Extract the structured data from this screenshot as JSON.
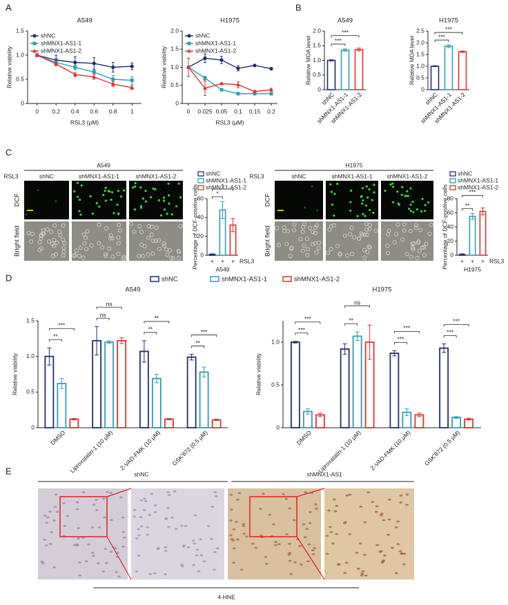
{
  "panels": [
    "A",
    "B",
    "C",
    "D",
    "E"
  ],
  "panel_c": {
    "blocks": [
      {
        "title": "A549",
        "treatment": "RSL3",
        "rows": [
          "DCF",
          "Bright field"
        ],
        "columns": [
          "shNC",
          "shMNX1-AS1-1",
          "shMNX1-AS1-2"
        ]
      },
      {
        "title": "H1975",
        "treatment": "RSL3",
        "rows": [
          "DCF",
          "Bright field"
        ],
        "columns": [
          "shNC",
          "shMNX1-AS1-1",
          "shMNX1-AS1-2"
        ]
      }
    ]
  },
  "panel_e": {
    "groups": [
      "shNC",
      "shMNX1-AS1"
    ],
    "stain": "4-HNE"
  },
  "chart_data": [
    {
      "type": "line",
      "title": "A549",
      "xlabel": "RSL3 (μM)",
      "ylabel": "Relative viability",
      "x": [
        0,
        0.2,
        0.4,
        0.6,
        0.8,
        1
      ],
      "xlim": [
        -0.1,
        1.1
      ],
      "xticks": [
        0,
        0.2,
        0.4,
        0.6,
        0.8,
        1
      ],
      "ylim": [
        0,
        1.5
      ],
      "yticks": [
        0,
        0.5,
        {
          "value": 1,
          "label": "1.0"
        },
        1.5
      ],
      "series": [
        {
          "name": "shNC",
          "color": "#1f2d6b",
          "values": [
            1,
            0.9,
            0.85,
            0.83,
            0.75,
            0.77
          ],
          "errors": [
            0.03,
            0.1,
            0.12,
            0.12,
            0.1,
            0.07
          ]
        },
        {
          "name": "shMNX1-AS1-1",
          "color": "#2a9fb0",
          "values": [
            1,
            0.85,
            0.75,
            0.65,
            0.5,
            0.48
          ],
          "errors": [
            0.03,
            0.05,
            0.05,
            0.05,
            0.08,
            0.08
          ]
        },
        {
          "name": "shMNX1-AS1-2",
          "color": "#e03030",
          "values": [
            1,
            0.82,
            0.6,
            0.55,
            0.4,
            0.33
          ],
          "errors": [
            0.03,
            0.04,
            0.04,
            0.05,
            0.05,
            0.04
          ]
        }
      ]
    },
    {
      "type": "line",
      "title": "H1975",
      "xlabel": "RSL3 (μM)",
      "ylabel": "Relative viability",
      "categories": [
        "0",
        "0.025",
        "0.05",
        "0.1",
        "0.15",
        "0.2"
      ],
      "ylim": [
        0,
        2
      ],
      "yticks": [
        0,
        0.5,
        {
          "value": 1,
          "label": "1.0"
        },
        1.5,
        {
          "value": 2,
          "label": "2.0"
        }
      ],
      "series": [
        {
          "name": "shNC",
          "color": "#1f2d6b",
          "values": [
            1,
            1.25,
            1.2,
            0.97,
            1.05,
            0.96
          ],
          "errors": [
            0.25,
            0.12,
            0.1,
            0.07,
            0.02,
            0.03
          ]
        },
        {
          "name": "shMNX1-AS1-1",
          "color": "#2a9fb0",
          "values": [
            1,
            0.7,
            0.38,
            0.27,
            0.27,
            0.27
          ],
          "errors": [
            0.25,
            0.05,
            0.03,
            0.02,
            0.02,
            0.02
          ]
        },
        {
          "name": "shMNX1-AS1-2",
          "color": "#e03030",
          "values": [
            1,
            0.42,
            0.55,
            0.52,
            0.33,
            0.38
          ],
          "errors": [
            0.25,
            0.2,
            0.02,
            0.08,
            0.03,
            0.04
          ]
        }
      ]
    },
    {
      "type": "bar",
      "title": "A549",
      "ylabel": "Relative MDA level",
      "categories": [
        "shNC",
        "shMNX1-AS1-1",
        "shMNX1-AS1-2"
      ],
      "colors": [
        "#1f2d6b",
        "#2a9fb0",
        "#e03030"
      ],
      "values": [
        1,
        1.35,
        1.37
      ],
      "errors": [
        0.02,
        0.04,
        0.05
      ],
      "ylim": [
        0,
        2
      ],
      "yticks": [
        0,
        0.5,
        {
          "value": 1,
          "label": "1.0"
        },
        1.5,
        {
          "value": 2,
          "label": "2.0"
        }
      ],
      "annotations": [
        "***",
        "***"
      ]
    },
    {
      "type": "bar",
      "title": "H1975",
      "ylabel": "Relative MDA level",
      "categories": [
        "shNC",
        "shMNX1-AS1-1",
        "shMNX1-AS1-2"
      ],
      "colors": [
        "#1f2d6b",
        "#2a9fb0",
        "#e03030"
      ],
      "values": [
        1,
        1.85,
        1.62
      ],
      "errors": [
        0.02,
        0.06,
        0.03
      ],
      "ylim": [
        0,
        2.5
      ],
      "yticks": [
        0,
        0.5,
        {
          "value": 1,
          "label": "1.0"
        },
        1.5,
        {
          "value": 2,
          "label": "2.0"
        },
        2.5
      ],
      "annotations": [
        "***",
        "***"
      ]
    },
    {
      "type": "bar",
      "ylabel": "Percentage of DCF-positive cells",
      "xlabel": "RSL3",
      "subtitle": "A549",
      "categories": [
        "+",
        "+",
        "+"
      ],
      "colors": [
        "#1f2d6b",
        "#2a9fb0",
        "#e03030"
      ],
      "legend": [
        "shNC",
        "shMNX1-AS1-1",
        "shMNX1-AS1-2"
      ],
      "values": [
        1,
        48,
        32
      ],
      "errors": [
        0.5,
        9,
        7
      ],
      "ylim": [
        0,
        60
      ],
      "yticks": [
        0,
        20,
        40,
        60
      ],
      "annotations": [
        "*",
        "*"
      ]
    },
    {
      "type": "bar",
      "ylabel": "Percentage of DCF-positive cells",
      "xlabel": "RSL3",
      "subtitle": "H1975",
      "categories": [
        "+",
        "+",
        "+"
      ],
      "colors": [
        "#1f2d6b",
        "#2a9fb0",
        "#e03030"
      ],
      "legend": [
        "shNC",
        "shMNX1-AS1-1",
        "shMNX1-AS1-2"
      ],
      "values": [
        1,
        55,
        62
      ],
      "errors": [
        1,
        4,
        5
      ],
      "ylim": [
        0,
        80
      ],
      "yticks": [
        0,
        20,
        40,
        60,
        80
      ],
      "annotations": [
        "**",
        "***"
      ]
    },
    {
      "type": "grouped_bar",
      "title": "A549",
      "ylabel": "Relative viability",
      "categories": [
        "DMSO",
        "Liproxstatin-1 (10 μM)",
        "Z-VAD-FMK (10 μM)",
        "GSK'872 (0.5 μM)"
      ],
      "ylim": [
        0,
        1.5
      ],
      "yticks": [
        0,
        0.5,
        {
          "value": 1,
          "label": "1.0"
        },
        1.5
      ],
      "series": [
        {
          "name": "shNC",
          "color": "#1f2d6b",
          "values": [
            1.0,
            1.22,
            1.07,
            0.99
          ],
          "errors": [
            0.12,
            0.2,
            0.15,
            0.04
          ]
        },
        {
          "name": "shMNX1-AS1-1",
          "color": "#2a9fb0",
          "values": [
            0.62,
            1.2,
            0.69,
            0.78
          ],
          "errors": [
            0.07,
            0.02,
            0.06,
            0.07
          ]
        },
        {
          "name": "shMNX1-AS1-2",
          "color": "#e03030",
          "values": [
            0.12,
            1.22,
            0.12,
            0.11
          ],
          "errors": [
            0.01,
            0.04,
            0.01,
            0.01
          ]
        }
      ],
      "annotations": [
        [
          "**",
          "***"
        ],
        [
          "ns",
          "ns"
        ],
        [
          "**",
          "**"
        ],
        [
          "**",
          "***"
        ]
      ]
    },
    {
      "type": "grouped_bar",
      "title": "H1975",
      "ylabel": "Relative viability",
      "categories": [
        "DMSO",
        "Liproxstatin-1 (10 μM)",
        "Z-VAD-FMK (10 μM)",
        "GSK'872 (0.5 μM)"
      ],
      "ylim": [
        0,
        1.25
      ],
      "yticks": [
        0,
        0.5,
        {
          "value": 1,
          "label": "1.0"
        }
      ],
      "series": [
        {
          "color": "#1f2d6b",
          "values": [
            1.0,
            0.92,
            0.87,
            0.93
          ],
          "errors": [
            0.01,
            0.06,
            0.03,
            0.05
          ]
        },
        {
          "color": "#2a9fb0",
          "values": [
            0.19,
            1.07,
            0.18,
            0.12
          ],
          "errors": [
            0.03,
            0.05,
            0.04,
            0.01
          ]
        },
        {
          "color": "#e03030",
          "values": [
            0.15,
            1.0,
            0.15,
            0.1
          ],
          "errors": [
            0.02,
            0.2,
            0.02,
            0.01
          ]
        }
      ],
      "annotations": [
        [
          "***",
          "***"
        ],
        [
          "**",
          "ns"
        ],
        [
          "***",
          "***"
        ],
        [
          "***",
          "***"
        ]
      ]
    }
  ]
}
